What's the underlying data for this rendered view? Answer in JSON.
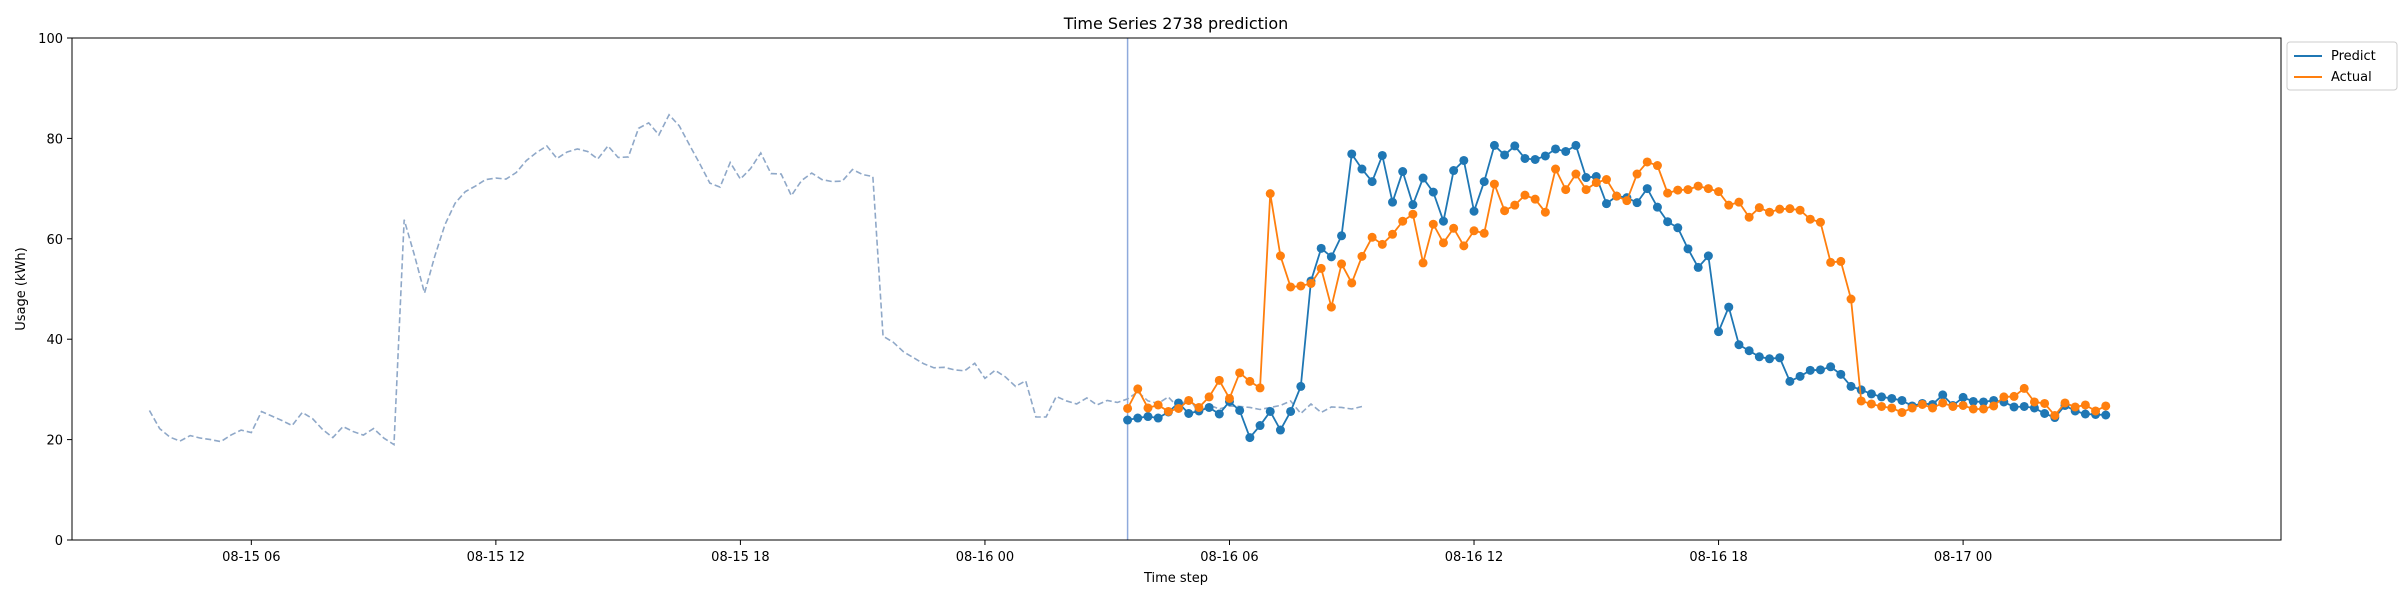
{
  "chart_data": {
    "type": "line",
    "title": "Time Series 2738 prediction",
    "xlabel": "Time step",
    "ylabel": "Usage (kWh)",
    "ylim": [
      0,
      100
    ],
    "yticks": [
      0,
      20,
      40,
      60,
      80,
      100
    ],
    "xlim": [
      "2024-08-15 01:36",
      "2024-08-17 07:48"
    ],
    "xticks": [
      "08-15 06",
      "08-15 12",
      "08-15 18",
      "08-16 00",
      "08-16 06",
      "08-16 12",
      "08-16 18",
      "08-17 00"
    ],
    "legend": "top-right",
    "grid": false,
    "colors": {
      "predict": "#1f77b4",
      "actual": "#ff7f0e",
      "history": "#8fa8c8",
      "divider": "#8faadc"
    },
    "divider_x": "2024-08-16 03:30",
    "history": {
      "x_start": "2024-08-15 03:30",
      "step_minutes": 15,
      "values": [
        25.8,
        22.2,
        20.5,
        19.7,
        20.8,
        20.3,
        20.0,
        19.6,
        20.9,
        21.9,
        21.4,
        25.6,
        24.7,
        23.8,
        22.8,
        25.4,
        24.2,
        22.0,
        20.4,
        22.6,
        21.6,
        20.9,
        22.2,
        20.3,
        19.0,
        63.8,
        56.8,
        49.2,
        56.5,
        62.8,
        67.1,
        69.4,
        70.5,
        71.8,
        72.1,
        71.9,
        73.2,
        75.6,
        77.2,
        78.5,
        76.0,
        77.3,
        77.9,
        77.4,
        75.9,
        78.5,
        76.2,
        76.3,
        82.0,
        83.1,
        80.7,
        84.7,
        82.5,
        78.7,
        75.0,
        71.1,
        70.3,
        75.2,
        71.9,
        74.0,
        77.1,
        73.0,
        72.9,
        68.6,
        71.6,
        73.1,
        71.8,
        71.4,
        71.5,
        73.8,
        72.8,
        72.4,
        40.6,
        39.4,
        37.5,
        36.3,
        35.1,
        34.3,
        34.4,
        33.9,
        33.7,
        35.2,
        32.2,
        33.8,
        32.5,
        30.6,
        31.7,
        24.5,
        24.5,
        28.6,
        27.7,
        27.1,
        28.3,
        26.9,
        27.8,
        27.4,
        28.1,
        29.5,
        27.7,
        27.2,
        28.5,
        26.3,
        28.4,
        25.3,
        26.9,
        26.1,
        26.7,
        26.6,
        26.4,
        26.0,
        26.4,
        26.8,
        27.7,
        25.2,
        27.1,
        25.4,
        26.5,
        26.4,
        26.1,
        26.6
      ]
    },
    "x_start": "2024-08-16 03:30",
    "step_minutes": 15,
    "series": [
      {
        "name": "Predict",
        "values": [
          23.9,
          24.3,
          24.6,
          24.3,
          25.5,
          27.3,
          25.2,
          25.7,
          26.4,
          25.1,
          27.6,
          25.8,
          20.4,
          22.8,
          25.6,
          21.9,
          25.6,
          30.6,
          51.6,
          58.1,
          56.4,
          60.6,
          76.9,
          73.9,
          71.4,
          76.6,
          67.3,
          73.4,
          66.8,
          72.1,
          69.3,
          63.5,
          73.6,
          75.6,
          65.5,
          71.4,
          78.6,
          76.7,
          78.5,
          76.0,
          75.8,
          76.5,
          77.9,
          77.4,
          78.6,
          72.2,
          72.4,
          67.0,
          68.5,
          68.2,
          67.2,
          70.0,
          66.3,
          63.4,
          62.2,
          58.0,
          54.3,
          56.6,
          41.5,
          46.4,
          38.9,
          37.7,
          36.5,
          36.1,
          36.3,
          31.6,
          32.6,
          33.8,
          33.9,
          34.5,
          33.0,
          30.6,
          29.9,
          29.1,
          28.5,
          28.2,
          27.8,
          26.7,
          27.2,
          27.0,
          28.9,
          26.8,
          28.4,
          27.6,
          27.5,
          27.8,
          27.5,
          26.5,
          26.6,
          26.3,
          25.2,
          24.4,
          26.8,
          25.7,
          25.1,
          25.0,
          24.9
        ]
      },
      {
        "name": "Actual",
        "values": [
          26.2,
          30.1,
          26.3,
          26.9,
          25.6,
          26.2,
          27.8,
          26.4,
          28.5,
          31.8,
          28.2,
          33.3,
          31.6,
          30.3,
          69.0,
          56.6,
          50.4,
          50.6,
          51.1,
          54.1,
          46.4,
          55.0,
          51.2,
          56.5,
          60.3,
          58.9,
          60.9,
          63.5,
          64.9,
          55.2,
          62.9,
          59.2,
          62.1,
          58.6,
          61.6,
          61.1,
          70.9,
          65.6,
          66.7,
          68.7,
          67.9,
          65.3,
          73.9,
          69.8,
          72.9,
          69.8,
          71.2,
          71.8,
          68.5,
          67.6,
          72.9,
          75.3,
          74.6,
          69.1,
          69.7,
          69.8,
          70.5,
          70.0,
          69.4,
          66.7,
          67.3,
          64.3,
          66.2,
          65.3,
          65.9,
          66.0,
          65.7,
          63.9,
          63.3,
          55.3,
          55.5,
          48.0,
          27.7,
          27.1,
          26.6,
          26.3,
          25.4,
          26.3,
          27.0,
          26.3,
          27.3,
          26.6,
          26.8,
          26.1,
          26.1,
          26.7,
          28.5,
          28.6,
          30.2,
          27.5,
          27.2,
          24.8,
          27.3,
          26.5,
          26.9,
          25.7,
          26.7
        ]
      }
    ]
  }
}
